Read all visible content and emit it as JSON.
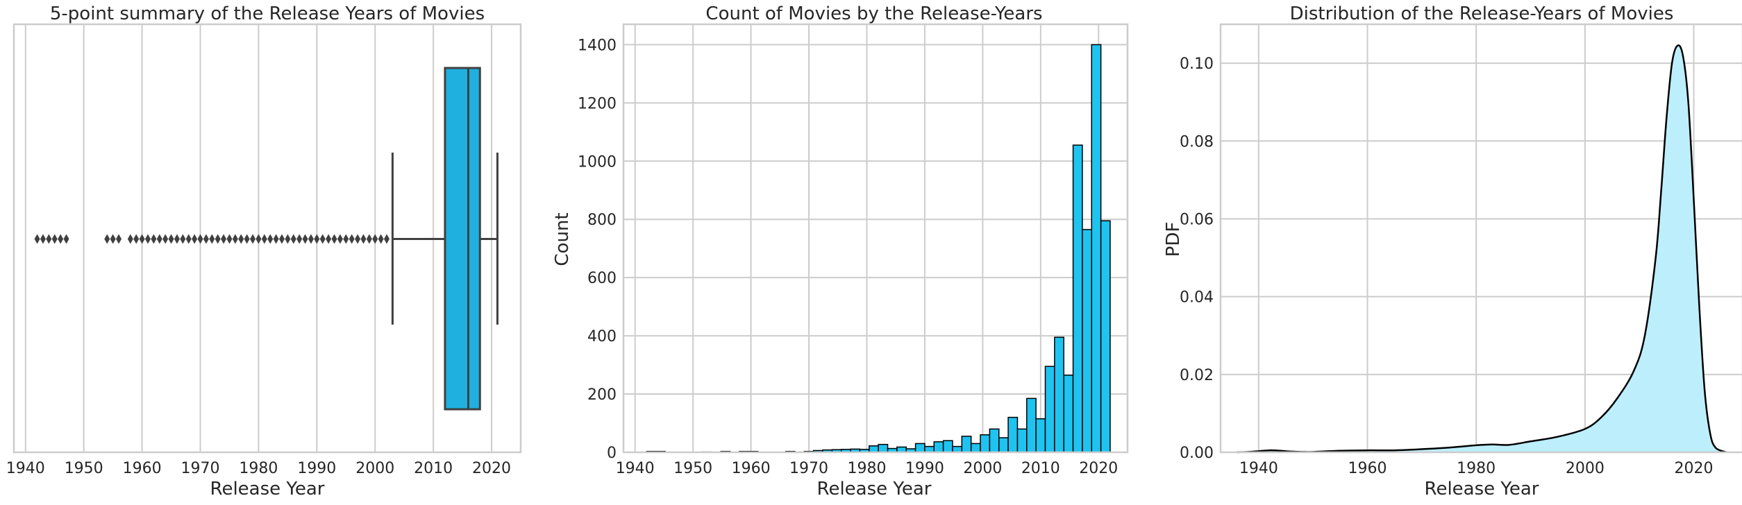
{
  "chart_data": [
    {
      "type": "box",
      "title": "5-point summary of the Release Years of Movies",
      "xlabel": "Release Year",
      "ylabel": "",
      "xlim": [
        1938,
        2025
      ],
      "xticks": [
        "1940",
        "1950",
        "1960",
        "1970",
        "1980",
        "1990",
        "2000",
        "2010",
        "2020"
      ],
      "q1": 2012,
      "median": 2016,
      "q3": 2018,
      "whisker_low": 2003,
      "whisker_high": 2021,
      "outliers": [
        1942,
        1943,
        1944,
        1945,
        1946,
        1947,
        1954,
        1955,
        1956,
        1958,
        1959,
        1960,
        1961,
        1962,
        1963,
        1964,
        1965,
        1966,
        1967,
        1968,
        1969,
        1970,
        1971,
        1972,
        1973,
        1974,
        1975,
        1976,
        1977,
        1978,
        1979,
        1980,
        1981,
        1982,
        1983,
        1984,
        1985,
        1986,
        1987,
        1988,
        1989,
        1990,
        1991,
        1992,
        1993,
        1994,
        1995,
        1996,
        1997,
        1998,
        1999,
        2000,
        2001,
        2002
      ],
      "color": "#1fb0e0",
      "grid": true
    },
    {
      "type": "bar",
      "title": "Count of Movies by the Release-Years",
      "xlabel": "Release Year",
      "ylabel": "Count",
      "xlim": [
        1938,
        2025
      ],
      "ylim": [
        0,
        1470
      ],
      "xticks": [
        "1940",
        "1950",
        "1960",
        "1970",
        "1980",
        "1990",
        "2000",
        "2010",
        "2020"
      ],
      "yticks": [
        "0",
        "200",
        "400",
        "600",
        "800",
        "1000",
        "1200",
        "1400"
      ],
      "bin_start": 1942,
      "bin_width": 1.6,
      "counts": [
        3,
        3,
        0,
        0,
        0,
        0,
        1,
        0,
        3,
        0,
        3,
        3,
        0,
        0,
        0,
        3,
        0,
        3,
        6,
        8,
        9,
        10,
        11,
        10,
        22,
        27,
        13,
        18,
        12,
        30,
        20,
        36,
        40,
        20,
        55,
        30,
        60,
        80,
        50,
        120,
        80,
        185,
        115,
        295,
        395,
        265,
        1055,
        765,
        1400,
        795
      ],
      "color": "#1ec3f0",
      "edgecolor": "#000000",
      "grid": true
    },
    {
      "type": "area",
      "title": "Distribution of the Release-Years of Movies",
      "xlabel": "Release Year",
      "ylabel": "PDF",
      "xlim": [
        1933,
        2029
      ],
      "ylim": [
        0,
        0.11
      ],
      "xticks": [
        "1940",
        "1960",
        "1980",
        "2000",
        "2020"
      ],
      "yticks": [
        "0.00",
        "0.02",
        "0.04",
        "0.06",
        "0.08",
        "0.10"
      ],
      "x": [
        1936,
        1938,
        1940,
        1942,
        1944,
        1946,
        1948,
        1950,
        1955,
        1960,
        1965,
        1970,
        1975,
        1980,
        1983,
        1986,
        1990,
        1995,
        2000,
        2003,
        2006,
        2009,
        2011,
        2013,
        2014,
        2015,
        2016,
        2017,
        2018,
        2019,
        2020,
        2021,
        2022,
        2023,
        2024,
        2026
      ],
      "y": [
        0,
        0.0001,
        0.0003,
        0.0005,
        0.0004,
        0.0002,
        0.0001,
        0.0001,
        0.0004,
        0.0005,
        0.0005,
        0.0008,
        0.0012,
        0.0018,
        0.002,
        0.0019,
        0.0028,
        0.004,
        0.006,
        0.009,
        0.014,
        0.021,
        0.03,
        0.05,
        0.067,
        0.086,
        0.1,
        0.1045,
        0.102,
        0.09,
        0.065,
        0.038,
        0.016,
        0.005,
        0.0012,
        0
      ],
      "color": "#bdeefc",
      "line_color": "#000000",
      "grid": true
    }
  ]
}
